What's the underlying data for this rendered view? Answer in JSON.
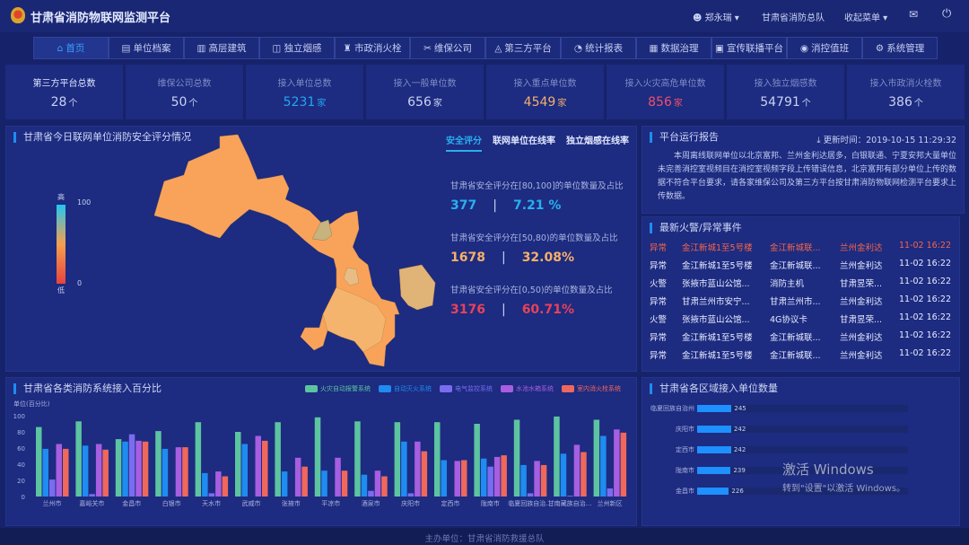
{
  "header": {
    "title": "甘肃省消防物联网监测平台",
    "user": "郑永瑞",
    "org": "甘肃省消防总队",
    "menu": "收起菜单",
    "user_icon": "user-icon",
    "mail_icon": "mail-icon",
    "power_icon": "power-icon"
  },
  "nav": [
    {
      "label": "首页",
      "icon": "home-icon"
    },
    {
      "label": "单位档案",
      "icon": "file-icon"
    },
    {
      "label": "高层建筑",
      "icon": "building-icon"
    },
    {
      "label": "独立烟感",
      "icon": "smoke-detector-icon"
    },
    {
      "label": "市政消火栓",
      "icon": "hydrant-icon"
    },
    {
      "label": "维保公司",
      "icon": "tools-icon"
    },
    {
      "label": "第三方平台",
      "icon": "platform-icon"
    },
    {
      "label": "统计报表",
      "icon": "pie-chart-icon"
    },
    {
      "label": "数据治理",
      "icon": "bar-chart-icon"
    },
    {
      "label": "宣传联播平台",
      "icon": "broadcast-icon"
    },
    {
      "label": "消控值班",
      "icon": "location-icon"
    },
    {
      "label": "系统管理",
      "icon": "gear-icon"
    }
  ],
  "stats": [
    {
      "label": "第三方平台总数",
      "value": "28",
      "unit": "个",
      "color": "#c9d2f2"
    },
    {
      "label": "维保公司总数",
      "value": "50",
      "unit": "个",
      "color": "#c9d2f2"
    },
    {
      "label": "接入单位总数",
      "value": "5231",
      "unit": "家",
      "color": "#22a8f2"
    },
    {
      "label": "接入一般单位数",
      "value": "656",
      "unit": "家",
      "color": "#c9d2f2"
    },
    {
      "label": "接入重点单位数",
      "value": "4549",
      "unit": "家",
      "color": "#f5b06a"
    },
    {
      "label": "接入火灾高危单位数",
      "value": "856",
      "unit": "家",
      "color": "#f0506a"
    },
    {
      "label": "接入独立烟感数",
      "value": "54791",
      "unit": "个",
      "color": "#c9d2f2"
    },
    {
      "label": "接入市政消火栓数",
      "value": "386",
      "unit": "个",
      "color": "#c9d2f2"
    }
  ],
  "map": {
    "title": "甘肃省今日联网单位消防安全评分情况",
    "tabs": [
      "安全评分",
      "联网单位在线率",
      "独立烟感在线率"
    ],
    "legend_high": "高",
    "legend_low": "低",
    "legend_max": "100",
    "legend_min": "0",
    "scores": [
      {
        "label": "甘肃省安全评分在[80,100]的单位数量及占比",
        "count": "377",
        "pct": "7.21 %",
        "color": "#27b0f0"
      },
      {
        "label": "甘肃省安全评分在[50,80)的单位数量及占比",
        "count": "1678",
        "pct": "32.08%",
        "color": "#f5b06a"
      },
      {
        "label": "甘肃省安全评分在[0,50)的单位数量及占比",
        "count": "3176",
        "pct": "60.71%",
        "color": "#e8425a"
      }
    ],
    "sep": "|"
  },
  "report": {
    "title": "平台运行报告",
    "update": "更新时间：2019-10-15 11:29:32",
    "text": "本周离线联网单位以北京富邦、兰州金利达居多，白银联通、宁夏安邦大量单位未完善消控室视频目在消控室视频字段上传错误信息，北京富邦有部分单位上传的数据不符合平台要求，请各家维保公司及第三方平台按甘肃消防物联网检测平台要求上传数据。"
  },
  "events": {
    "title": "最新火警/异常事件",
    "rows": [
      [
        "异常",
        "金江新城1至5号楼",
        "金江新城联...",
        "兰州金利达",
        "11-02 16:22"
      ],
      [
        "异常",
        "金江新城1至5号楼",
        "金江新城联...",
        "兰州金利达",
        "11-02 16:22"
      ],
      [
        "火警",
        "张掖市蓝山公馆...",
        "消防主机",
        "甘肃昱荣...",
        "11-02 16:22"
      ],
      [
        "异常",
        "甘肃兰州市安宁...",
        "甘肃兰州市...",
        "兰州金利达",
        "11-02 16:22"
      ],
      [
        "火警",
        "张掖市蓝山公馆...",
        "4G协议卡",
        "甘肃昱荣...",
        "11-02 16:22"
      ],
      [
        "异常",
        "金江新城1至5号楼",
        "金江新城联...",
        "兰州金利达",
        "11-02 16:22"
      ],
      [
        "异常",
        "金江新城1至5号楼",
        "金江新城联...",
        "兰州金利达",
        "11-02 16:22"
      ]
    ]
  },
  "chart_data": [
    {
      "type": "bar",
      "title": "甘肃省各类消防系统接入百分比",
      "ylabel": "单位(百分比)",
      "ylim": [
        0,
        100
      ],
      "yticks": [
        0,
        20,
        40,
        60,
        80,
        100
      ],
      "legend": "top-right",
      "categories": [
        "兰州市",
        "嘉峪关市",
        "金昌市",
        "白银市",
        "天水市",
        "武威市",
        "张掖市",
        "平凉市",
        "酒泉市",
        "庆阳市",
        "定西市",
        "陇南市",
        "临夏回族自治州",
        "甘南藏族自治州",
        "兰州新区"
      ],
      "series": [
        {
          "name": "火灾自动报警系统",
          "color": "#5cc4a0",
          "values": [
            86,
            93,
            71,
            81,
            92,
            80,
            92,
            98,
            93,
            92,
            92,
            90,
            95,
            99,
            95
          ]
        },
        {
          "name": "自动灭火系统",
          "color": "#1e8cf0",
          "values": [
            59,
            63,
            68,
            59,
            29,
            65,
            31,
            32,
            27,
            68,
            45,
            47,
            39,
            53,
            75
          ]
        },
        {
          "name": "电气监控系统",
          "color": "#7a6cf0",
          "values": [
            21,
            3,
            77,
            0,
            4,
            0,
            0,
            0,
            7,
            4,
            0,
            37,
            4,
            1,
            10
          ]
        },
        {
          "name": "水池水箱系统",
          "color": "#a75ee0",
          "values": [
            65,
            65,
            69,
            61,
            31,
            75,
            48,
            48,
            32,
            68,
            44,
            49,
            44,
            64,
            83
          ]
        },
        {
          "name": "室内消火栓系统",
          "color": "#f0675c",
          "values": [
            59,
            58,
            68,
            61,
            25,
            69,
            37,
            32,
            25,
            56,
            45,
            51,
            39,
            55,
            79
          ]
        }
      ]
    },
    {
      "type": "bar",
      "orientation": "horizontal",
      "title": "甘肃省各区域接入单位数量",
      "categories": [
        "临夏回族自治州",
        "庆阳市",
        "定西市",
        "陇南市",
        "金昌市"
      ],
      "values": [
        245,
        242,
        242,
        239,
        226
      ],
      "color": "#1e90ff"
    }
  ],
  "watermark": {
    "line1": "激活 Windows",
    "line2": "转到\"设置\"以激活 Windows。"
  },
  "footer": "主办单位：甘肃省消防救援总队"
}
